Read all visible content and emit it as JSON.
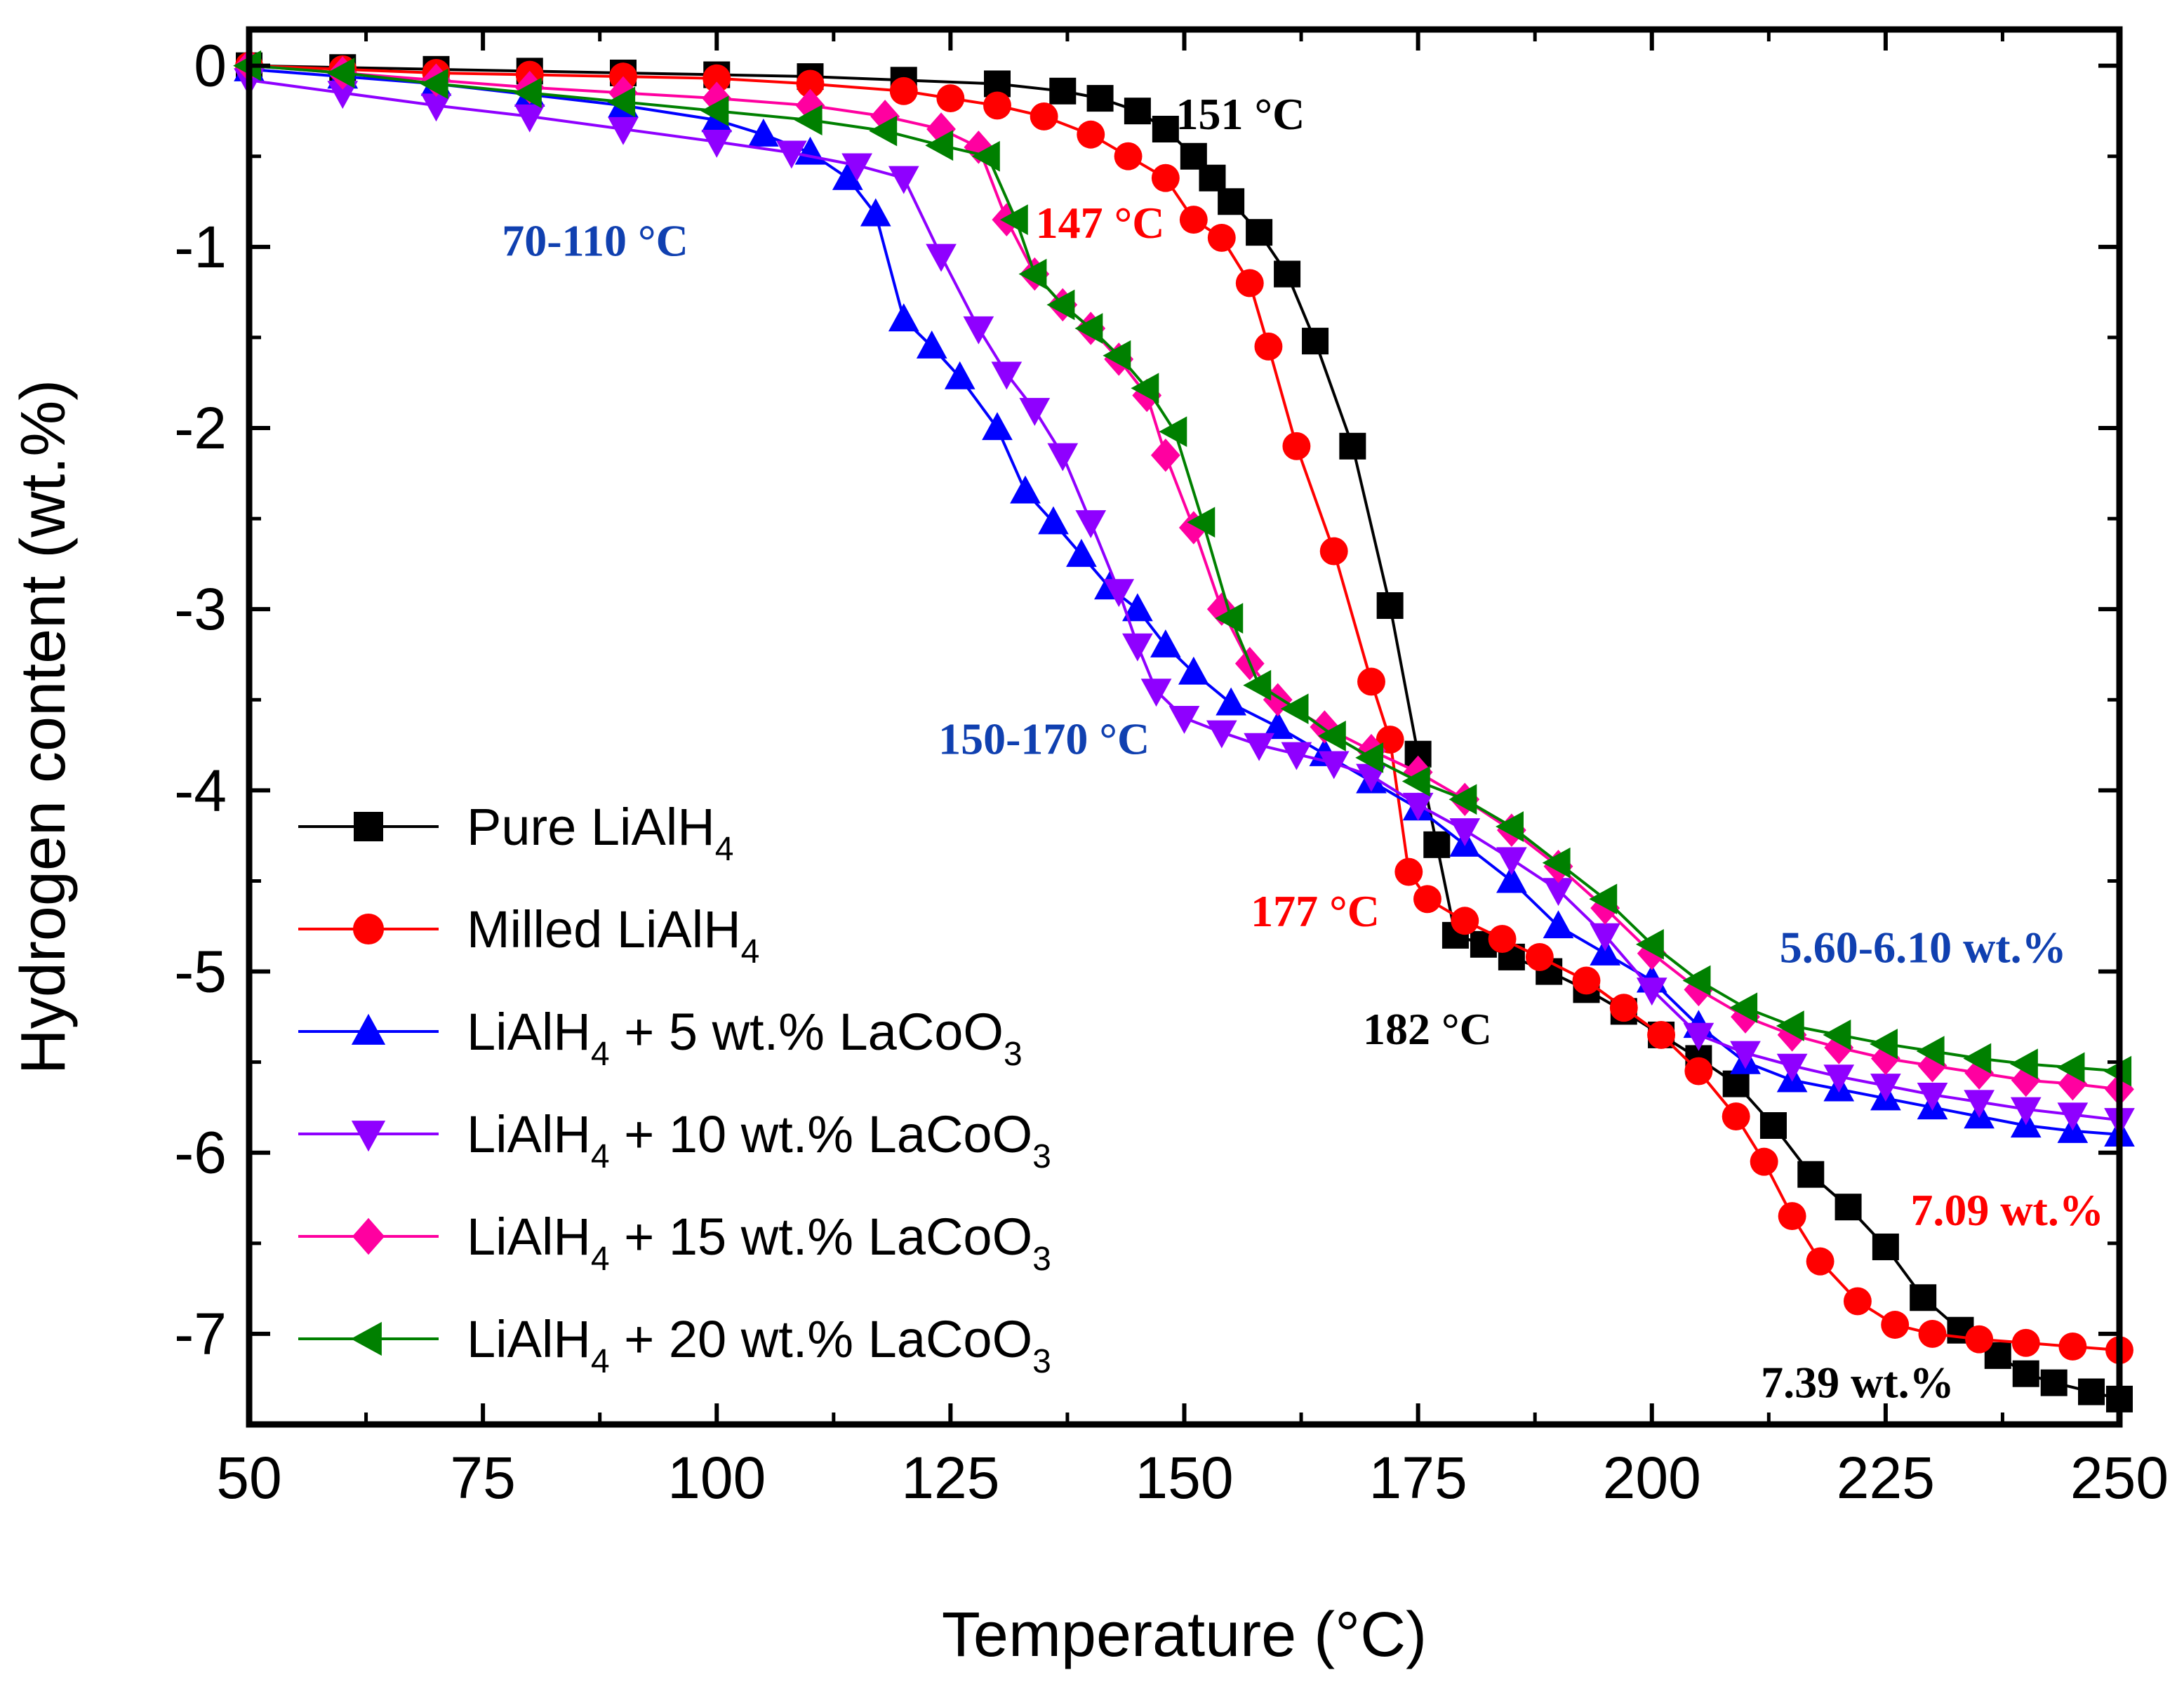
{
  "chart_data": {
    "type": "line",
    "title": "",
    "xlabel": "Temperature (°C)",
    "ylabel": "Hydrogen content (wt.%)",
    "xlim": [
      50,
      250
    ],
    "ylim": [
      -7.5,
      0.2
    ],
    "x_ticks": [
      50,
      75,
      100,
      125,
      150,
      175,
      200,
      225,
      250
    ],
    "x_tick_labels": [
      "50",
      "75",
      "100",
      "125",
      "150",
      "175",
      "200",
      "225",
      "250"
    ],
    "y_ticks": [
      0,
      -1,
      -2,
      -3,
      -4,
      -5,
      -6,
      -7
    ],
    "y_tick_labels": [
      "0",
      "-1",
      "-2",
      "-3",
      "-4",
      "-5",
      "-6",
      "-7"
    ],
    "grid": false,
    "legend_position": "bottom-left",
    "series": [
      {
        "name": "Pure LiAlH4",
        "legend_main": "Pure LiAlH",
        "legend_sub": "4",
        "legend_tail": "",
        "legend_sub2": "",
        "color": "#000000",
        "marker": "square",
        "points": [
          [
            50,
            0
          ],
          [
            60,
            -0.01
          ],
          [
            70,
            -0.02
          ],
          [
            80,
            -0.03
          ],
          [
            90,
            -0.04
          ],
          [
            100,
            -0.05
          ],
          [
            110,
            -0.06
          ],
          [
            120,
            -0.08
          ],
          [
            130,
            -0.1
          ],
          [
            137,
            -0.14
          ],
          [
            141,
            -0.18
          ],
          [
            145,
            -0.25
          ],
          [
            148,
            -0.35
          ],
          [
            151,
            -0.5
          ],
          [
            153,
            -0.62
          ],
          [
            155,
            -0.75
          ],
          [
            158,
            -0.92
          ],
          [
            161,
            -1.15
          ],
          [
            164,
            -1.52
          ],
          [
            168,
            -2.1
          ],
          [
            172,
            -2.98
          ],
          [
            175,
            -3.8
          ],
          [
            177,
            -4.3
          ],
          [
            179,
            -4.8
          ],
          [
            182,
            -4.85
          ],
          [
            185,
            -4.92
          ],
          [
            189,
            -5.0
          ],
          [
            193,
            -5.1
          ],
          [
            197,
            -5.22
          ],
          [
            201,
            -5.35
          ],
          [
            205,
            -5.48
          ],
          [
            209,
            -5.62
          ],
          [
            213,
            -5.85
          ],
          [
            217,
            -6.12
          ],
          [
            221,
            -6.3
          ],
          [
            225,
            -6.52
          ],
          [
            229,
            -6.8
          ],
          [
            233,
            -6.98
          ],
          [
            237,
            -7.12
          ],
          [
            240,
            -7.22
          ],
          [
            243,
            -7.27
          ],
          [
            247,
            -7.32
          ],
          [
            250,
            -7.36
          ]
        ]
      },
      {
        "name": "Milled LiAlH4",
        "legend_main": "Milled LiAlH",
        "legend_sub": "4",
        "legend_tail": "",
        "legend_sub2": "",
        "color": "#ff0000",
        "marker": "circle",
        "points": [
          [
            50,
            0
          ],
          [
            60,
            -0.02
          ],
          [
            70,
            -0.04
          ],
          [
            80,
            -0.05
          ],
          [
            90,
            -0.06
          ],
          [
            100,
            -0.07
          ],
          [
            110,
            -0.1
          ],
          [
            120,
            -0.14
          ],
          [
            125,
            -0.18
          ],
          [
            130,
            -0.22
          ],
          [
            135,
            -0.28
          ],
          [
            140,
            -0.38
          ],
          [
            144,
            -0.5
          ],
          [
            148,
            -0.62
          ],
          [
            151,
            -0.85
          ],
          [
            154,
            -0.95
          ],
          [
            157,
            -1.2
          ],
          [
            159,
            -1.55
          ],
          [
            162,
            -2.1
          ],
          [
            166,
            -2.68
          ],
          [
            170,
            -3.4
          ],
          [
            172,
            -3.72
          ],
          [
            174,
            -4.45
          ],
          [
            176,
            -4.6
          ],
          [
            180,
            -4.72
          ],
          [
            184,
            -4.82
          ],
          [
            188,
            -4.92
          ],
          [
            193,
            -5.05
          ],
          [
            197,
            -5.2
          ],
          [
            201,
            -5.35
          ],
          [
            205,
            -5.55
          ],
          [
            209,
            -5.8
          ],
          [
            212,
            -6.05
          ],
          [
            215,
            -6.35
          ],
          [
            218,
            -6.6
          ],
          [
            222,
            -6.82
          ],
          [
            226,
            -6.95
          ],
          [
            230,
            -7.0
          ],
          [
            235,
            -7.03
          ],
          [
            240,
            -7.05
          ],
          [
            245,
            -7.07
          ],
          [
            250,
            -7.09
          ]
        ]
      },
      {
        "name": "LiAlH4 + 5 wt.% LaCoO3",
        "legend_main": "LiAlH",
        "legend_sub": "4",
        "legend_tail": " + 5 wt.% LaCoO",
        "legend_sub2": "3",
        "color": "#0000ff",
        "marker": "triangle-up",
        "points": [
          [
            50,
            -0.02
          ],
          [
            60,
            -0.06
          ],
          [
            70,
            -0.1
          ],
          [
            80,
            -0.16
          ],
          [
            90,
            -0.22
          ],
          [
            100,
            -0.3
          ],
          [
            105,
            -0.38
          ],
          [
            110,
            -0.48
          ],
          [
            114,
            -0.62
          ],
          [
            117,
            -0.82
          ],
          [
            120,
            -1.4
          ],
          [
            123,
            -1.55
          ],
          [
            126,
            -1.72
          ],
          [
            130,
            -2.0
          ],
          [
            133,
            -2.35
          ],
          [
            136,
            -2.52
          ],
          [
            139,
            -2.7
          ],
          [
            142,
            -2.88
          ],
          [
            145,
            -3.0
          ],
          [
            148,
            -3.2
          ],
          [
            151,
            -3.35
          ],
          [
            155,
            -3.52
          ],
          [
            160,
            -3.65
          ],
          [
            165,
            -3.8
          ],
          [
            170,
            -3.95
          ],
          [
            175,
            -4.1
          ],
          [
            180,
            -4.3
          ],
          [
            185,
            -4.5
          ],
          [
            190,
            -4.75
          ],
          [
            195,
            -4.9
          ],
          [
            200,
            -5.05
          ],
          [
            205,
            -5.3
          ],
          [
            210,
            -5.5
          ],
          [
            215,
            -5.6
          ],
          [
            220,
            -5.65
          ],
          [
            225,
            -5.7
          ],
          [
            230,
            -5.75
          ],
          [
            235,
            -5.8
          ],
          [
            240,
            -5.85
          ],
          [
            245,
            -5.88
          ],
          [
            250,
            -5.9
          ]
        ]
      },
      {
        "name": "LiAlH4 + 10 wt.% LaCoO3",
        "legend_main": "LiAlH",
        "legend_sub": "4",
        "legend_tail": " + 10 wt.% LaCoO",
        "legend_sub2": "3",
        "color": "#8f00ff",
        "marker": "triangle-down",
        "points": [
          [
            50,
            -0.08
          ],
          [
            60,
            -0.15
          ],
          [
            70,
            -0.22
          ],
          [
            80,
            -0.28
          ],
          [
            90,
            -0.35
          ],
          [
            100,
            -0.42
          ],
          [
            108,
            -0.48
          ],
          [
            115,
            -0.55
          ],
          [
            120,
            -0.62
          ],
          [
            124,
            -1.05
          ],
          [
            128,
            -1.45
          ],
          [
            131,
            -1.7
          ],
          [
            134,
            -1.9
          ],
          [
            137,
            -2.15
          ],
          [
            140,
            -2.52
          ],
          [
            143,
            -2.9
          ],
          [
            145,
            -3.2
          ],
          [
            147,
            -3.45
          ],
          [
            150,
            -3.6
          ],
          [
            154,
            -3.68
          ],
          [
            158,
            -3.75
          ],
          [
            162,
            -3.8
          ],
          [
            166,
            -3.85
          ],
          [
            170,
            -3.92
          ],
          [
            175,
            -4.08
          ],
          [
            180,
            -4.22
          ],
          [
            185,
            -4.38
          ],
          [
            190,
            -4.55
          ],
          [
            195,
            -4.8
          ],
          [
            200,
            -5.1
          ],
          [
            205,
            -5.35
          ],
          [
            210,
            -5.45
          ],
          [
            215,
            -5.52
          ],
          [
            220,
            -5.58
          ],
          [
            225,
            -5.63
          ],
          [
            230,
            -5.68
          ],
          [
            235,
            -5.72
          ],
          [
            240,
            -5.76
          ],
          [
            245,
            -5.79
          ],
          [
            250,
            -5.82
          ]
        ]
      },
      {
        "name": "LiAlH4 + 15 wt.% LaCoO3",
        "legend_main": "LiAlH",
        "legend_sub": "4",
        "legend_tail": " + 15 wt.% LaCoO",
        "legend_sub2": "3",
        "color": "#ff00a0",
        "marker": "diamond",
        "points": [
          [
            50,
            0
          ],
          [
            60,
            -0.04
          ],
          [
            70,
            -0.08
          ],
          [
            80,
            -0.12
          ],
          [
            90,
            -0.15
          ],
          [
            100,
            -0.18
          ],
          [
            110,
            -0.22
          ],
          [
            118,
            -0.28
          ],
          [
            124,
            -0.35
          ],
          [
            128,
            -0.45
          ],
          [
            131,
            -0.85
          ],
          [
            134,
            -1.15
          ],
          [
            137,
            -1.32
          ],
          [
            140,
            -1.45
          ],
          [
            143,
            -1.62
          ],
          [
            146,
            -1.82
          ],
          [
            148,
            -2.15
          ],
          [
            151,
            -2.55
          ],
          [
            154,
            -3.0
          ],
          [
            157,
            -3.3
          ],
          [
            160,
            -3.5
          ],
          [
            165,
            -3.65
          ],
          [
            170,
            -3.78
          ],
          [
            175,
            -3.9
          ],
          [
            180,
            -4.05
          ],
          [
            185,
            -4.22
          ],
          [
            190,
            -4.42
          ],
          [
            195,
            -4.65
          ],
          [
            200,
            -4.9
          ],
          [
            205,
            -5.1
          ],
          [
            210,
            -5.25
          ],
          [
            215,
            -5.35
          ],
          [
            220,
            -5.42
          ],
          [
            225,
            -5.48
          ],
          [
            230,
            -5.52
          ],
          [
            235,
            -5.56
          ],
          [
            240,
            -5.6
          ],
          [
            245,
            -5.62
          ],
          [
            250,
            -5.65
          ]
        ]
      },
      {
        "name": "LiAlH4 + 20 wt.% LaCoO3",
        "legend_main": "LiAlH",
        "legend_sub": "4",
        "legend_tail": " + 20 wt.% LaCoO",
        "legend_sub2": "3",
        "color": "#008000",
        "marker": "triangle-left",
        "points": [
          [
            50,
            0
          ],
          [
            60,
            -0.04
          ],
          [
            70,
            -0.1
          ],
          [
            80,
            -0.15
          ],
          [
            90,
            -0.2
          ],
          [
            100,
            -0.25
          ],
          [
            110,
            -0.3
          ],
          [
            118,
            -0.36
          ],
          [
            124,
            -0.44
          ],
          [
            129,
            -0.5
          ],
          [
            132,
            -0.85
          ],
          [
            134,
            -1.15
          ],
          [
            137,
            -1.32
          ],
          [
            140,
            -1.45
          ],
          [
            143,
            -1.6
          ],
          [
            146,
            -1.78
          ],
          [
            149,
            -2.02
          ],
          [
            152,
            -2.52
          ],
          [
            155,
            -3.05
          ],
          [
            158,
            -3.42
          ],
          [
            162,
            -3.55
          ],
          [
            166,
            -3.7
          ],
          [
            170,
            -3.82
          ],
          [
            175,
            -3.95
          ],
          [
            180,
            -4.05
          ],
          [
            185,
            -4.2
          ],
          [
            190,
            -4.4
          ],
          [
            195,
            -4.6
          ],
          [
            200,
            -4.85
          ],
          [
            205,
            -5.05
          ],
          [
            210,
            -5.2
          ],
          [
            215,
            -5.3
          ],
          [
            220,
            -5.35
          ],
          [
            225,
            -5.4
          ],
          [
            230,
            -5.44
          ],
          [
            235,
            -5.48
          ],
          [
            240,
            -5.51
          ],
          [
            245,
            -5.53
          ],
          [
            250,
            -5.55
          ]
        ]
      }
    ],
    "annotations": [
      {
        "text": "151 °C",
        "color": "#000000",
        "x": 156,
        "y": -0.35,
        "anchor": "middle"
      },
      {
        "text": "70-110 °C",
        "color": "#1040b0",
        "x": 87,
        "y": -1.05,
        "anchor": "middle"
      },
      {
        "text": "147 °C",
        "color": "#ff0000",
        "x": 141,
        "y": -0.95,
        "anchor": "middle"
      },
      {
        "text": "150-170 °C",
        "color": "#1040b0",
        "x": 135,
        "y": -3.8,
        "anchor": "middle"
      },
      {
        "text": "177 °C",
        "color": "#ff0000",
        "x": 164,
        "y": -4.75,
        "anchor": "middle"
      },
      {
        "text": "182 °C",
        "color": "#000000",
        "x": 176,
        "y": -5.4,
        "anchor": "middle"
      },
      {
        "text": "5.60-6.10 wt.%",
        "color": "#1040b0",
        "x": 229,
        "y": -4.95,
        "anchor": "middle"
      },
      {
        "text": "7.09 wt.%",
        "color": "#ff0000",
        "x": 238,
        "y": -6.4,
        "anchor": "middle"
      },
      {
        "text": "7.39 wt.%",
        "color": "#000000",
        "x": 222,
        "y": -7.35,
        "anchor": "middle"
      }
    ]
  }
}
